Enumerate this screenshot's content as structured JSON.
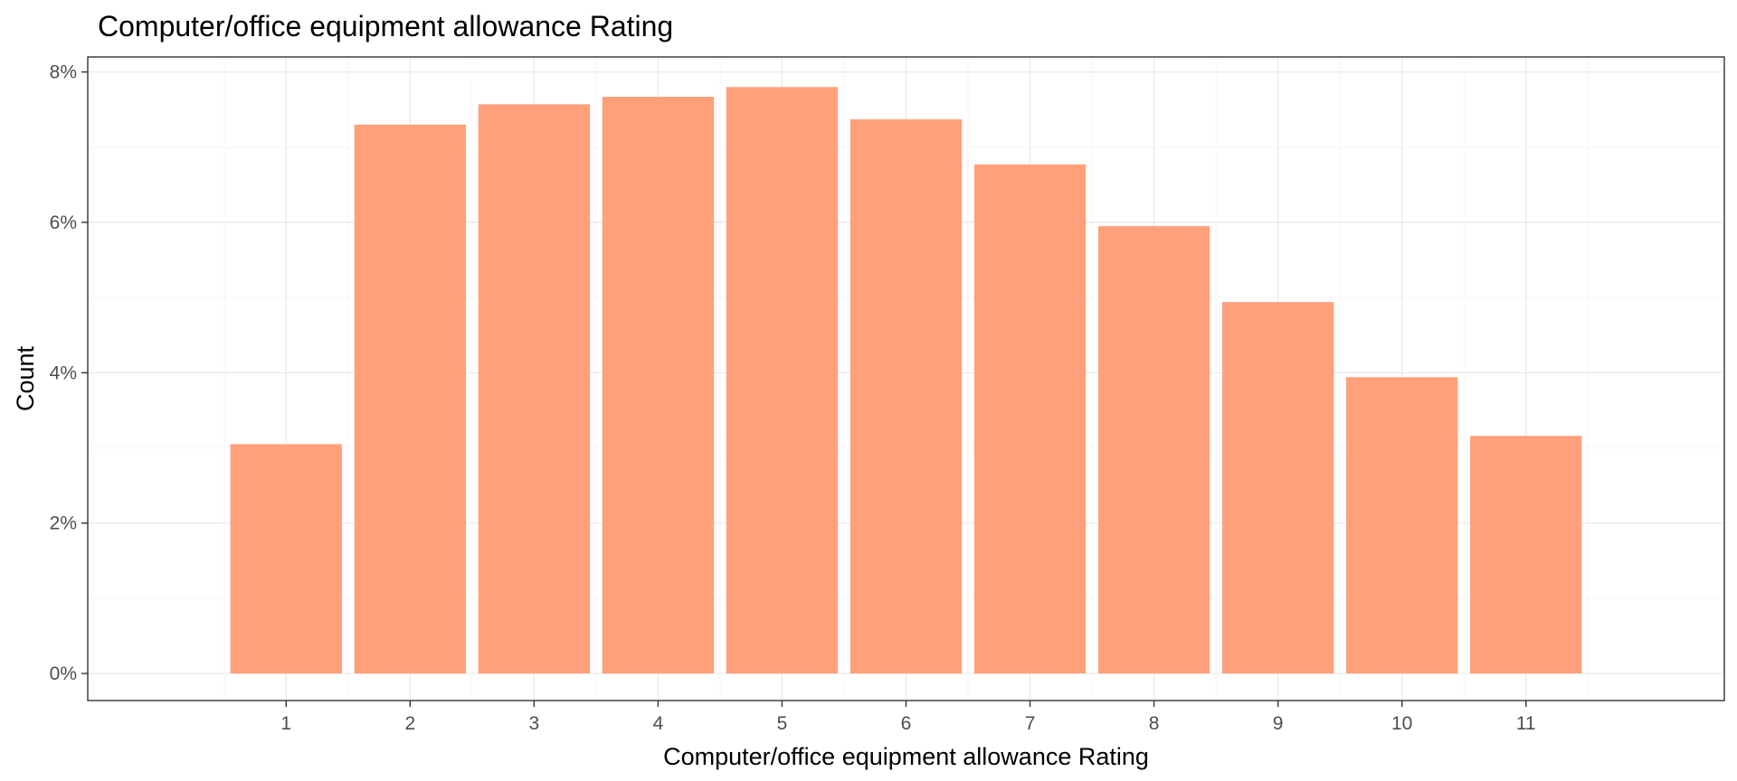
{
  "chart_data": {
    "type": "bar",
    "title": "Computer/office equipment allowance Rating",
    "xlabel": "Computer/office equipment allowance Rating",
    "ylabel": "Count",
    "categories": [
      "1",
      "2",
      "3",
      "4",
      "5",
      "6",
      "7",
      "8",
      "9",
      "10",
      "11"
    ],
    "values": [
      3.05,
      7.3,
      7.57,
      7.67,
      7.8,
      7.37,
      6.77,
      5.95,
      4.94,
      3.94,
      3.16
    ],
    "value_unit": "%",
    "ylim": [
      -0.36,
      8.2
    ],
    "yticks": [
      0,
      2,
      4,
      6,
      8
    ],
    "ytick_labels": [
      "0%",
      "2%",
      "4%",
      "6%",
      "8%"
    ],
    "xlim": [
      -0.6,
      12.6
    ],
    "bar_color": "#FFA07A",
    "grid": true,
    "legend": "none"
  }
}
